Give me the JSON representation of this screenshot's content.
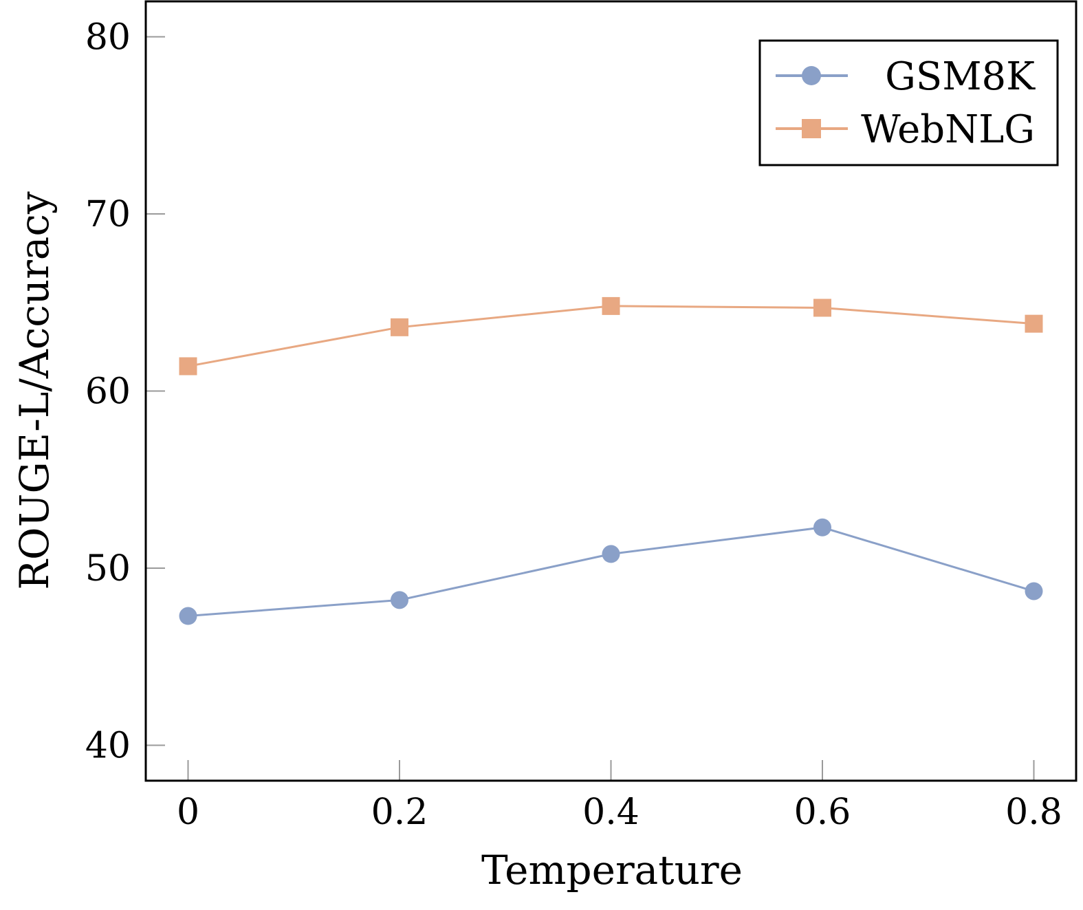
{
  "chart_data": {
    "type": "line",
    "title": "",
    "xlabel": "Temperature",
    "ylabel": "ROUGE-L/Accuracy",
    "x": [
      0,
      0.2,
      0.4,
      0.6,
      0.8
    ],
    "xticks": [
      "0",
      "0.2",
      "0.4",
      "0.6",
      "0.8"
    ],
    "yticks": [
      "40",
      "50",
      "60",
      "70",
      "80"
    ],
    "xlim": [
      -0.04,
      0.84
    ],
    "ylim": [
      38,
      82
    ],
    "grid": false,
    "legend_position": "top-right",
    "series": [
      {
        "name": "GSM8K",
        "marker": "circle",
        "color": "#8aa0c8",
        "values": [
          47.3,
          48.2,
          50.8,
          52.3,
          48.7
        ]
      },
      {
        "name": "WebNLG",
        "marker": "square",
        "color": "#e8a882",
        "values": [
          61.4,
          63.6,
          64.8,
          64.7,
          63.8
        ]
      }
    ]
  }
}
